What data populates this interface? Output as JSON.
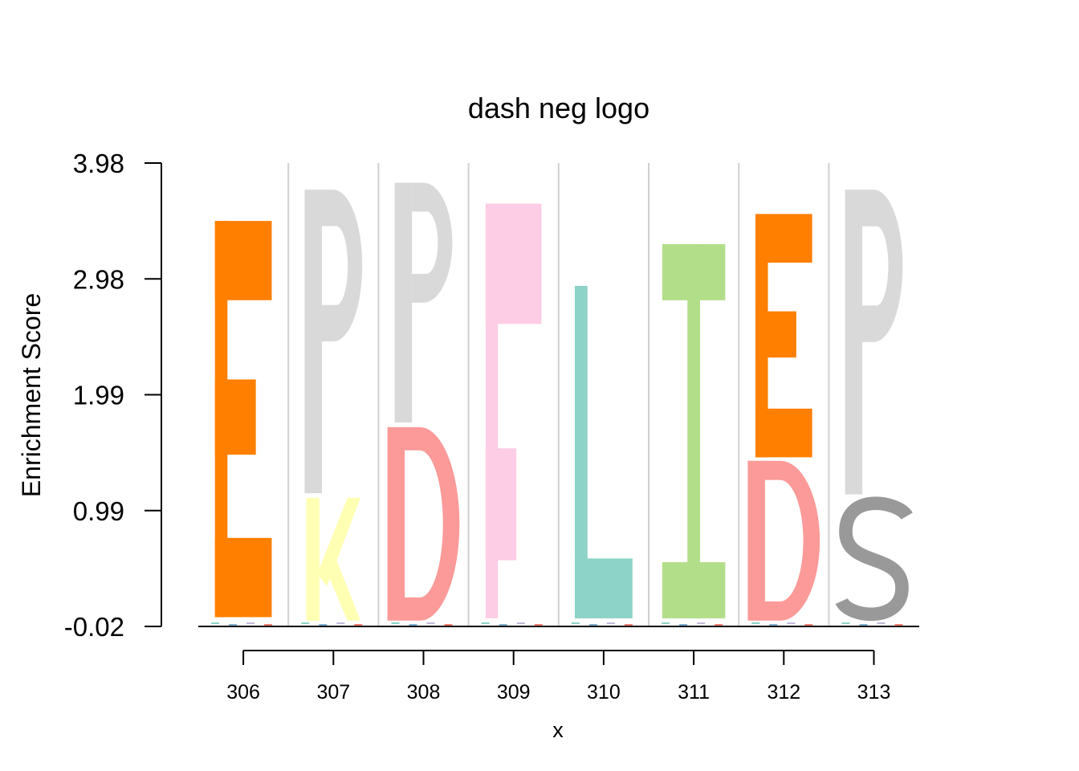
{
  "chart_data": {
    "type": "sequence-logo",
    "title": "dash neg logo",
    "xlabel": "x",
    "ylabel": "Enrichment Score",
    "x_tick_labels": [
      "306",
      "307",
      "308",
      "309",
      "310",
      "311",
      "312",
      "313"
    ],
    "y_tick_labels": [
      "3.98",
      "2.98",
      "1.99",
      "0.99",
      "-0.02"
    ],
    "ylim": [
      -0.02,
      3.98
    ],
    "grid": "vertical separators between positions",
    "colors": {
      "E": "#FF7F00",
      "P": "#D9D9D9",
      "K": "#FFFFB3",
      "D": "#FB9A99",
      "F": "#FCCDE5",
      "L": "#8DD3C7",
      "I": "#B3DE89",
      "S": "#999999"
    },
    "positions": [
      {
        "x": "306",
        "letters": [
          {
            "letter": "E",
            "y0": 0.06,
            "y1": 3.48
          }
        ]
      },
      {
        "x": "307",
        "letters": [
          {
            "letter": "K",
            "y0": 0.03,
            "y1": 1.09
          },
          {
            "letter": "P",
            "y0": 1.13,
            "y1": 3.75
          }
        ]
      },
      {
        "x": "308",
        "letters": [
          {
            "letter": "D",
            "y0": 0.03,
            "y1": 1.7
          },
          {
            "letter": "P",
            "y0": 1.74,
            "y1": 3.81
          }
        ]
      },
      {
        "x": "309",
        "letters": [
          {
            "letter": "F",
            "y0": 0.05,
            "y1": 3.63
          }
        ]
      },
      {
        "x": "310",
        "letters": [
          {
            "letter": "L",
            "y0": 0.05,
            "y1": 2.92
          }
        ]
      },
      {
        "x": "311",
        "letters": [
          {
            "letter": "I",
            "y0": 0.05,
            "y1": 3.28
          }
        ]
      },
      {
        "x": "312",
        "letters": [
          {
            "letter": "D",
            "y0": 0.03,
            "y1": 1.41
          },
          {
            "letter": "E",
            "y0": 1.44,
            "y1": 3.54
          }
        ]
      },
      {
        "x": "313",
        "letters": [
          {
            "letter": "S",
            "y0": 0.03,
            "y1": 1.08
          },
          {
            "letter": "P",
            "y0": 1.12,
            "y1": 3.75
          }
        ]
      }
    ]
  }
}
